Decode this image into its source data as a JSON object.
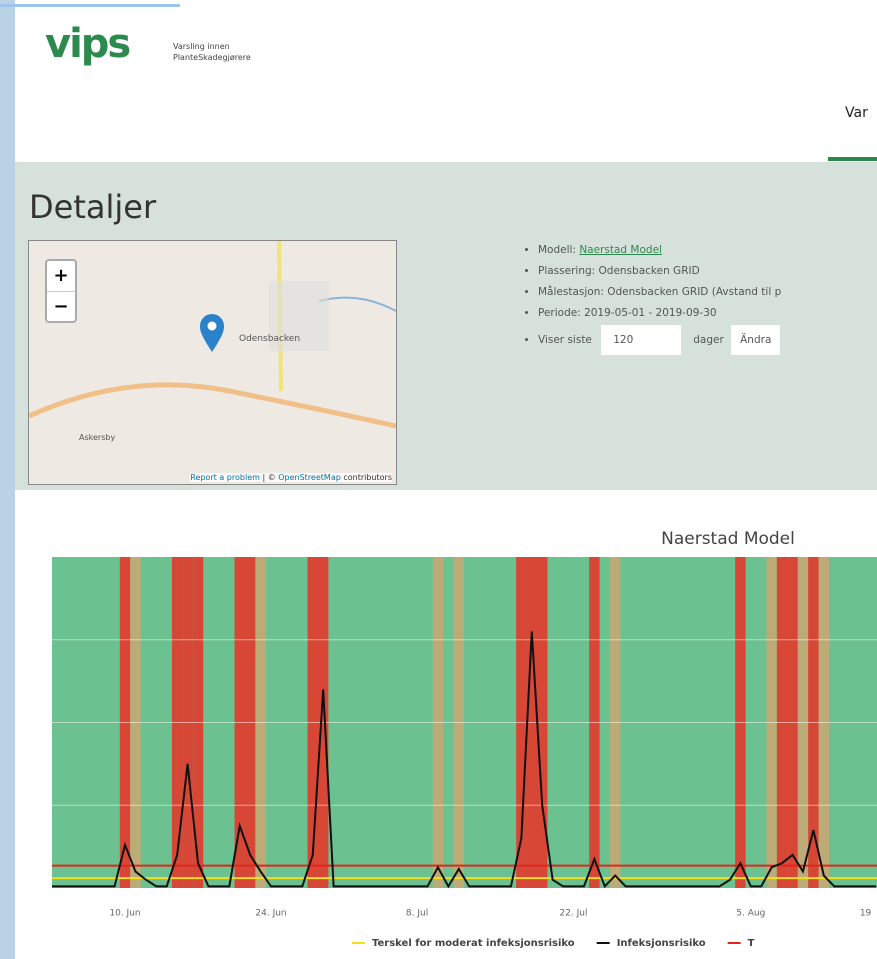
{
  "header": {
    "logo": "vips",
    "tagline_1": "Varsling innen",
    "tagline_2": "PlanteSkadegjørere",
    "nav_item": "Var"
  },
  "page_title": "Detaljer",
  "map": {
    "zoom_in": "+",
    "zoom_out": "−",
    "place": "Odensbacken",
    "village": "Askersby",
    "attribution_link": "Report a problem",
    "attribution_sep": " | © ",
    "attribution_osm": "OpenStreetMap",
    "attribution_rest": " contributors"
  },
  "info": {
    "model_label": "Modell: ",
    "model_link": "Naerstad Model",
    "location": "Plassering: Odensbacken GRID",
    "station": "Målestasjon: Odensbacken GRID (Avstand til p",
    "period": "Periode: 2019-05-01 - 2019-09-30",
    "show_label": "Viser siste",
    "show_days": "120",
    "days_unit": "dager",
    "button": "Ändra"
  },
  "chart_data": {
    "type": "line",
    "title": "Naerstad Model",
    "categories": [
      null,
      null,
      null,
      null,
      null,
      null,
      null,
      "10. Jun",
      null,
      null,
      null,
      null,
      null,
      null,
      null,
      null,
      null,
      null,
      null,
      null,
      null,
      "24. Jun",
      null,
      null,
      null,
      null,
      null,
      null,
      null,
      null,
      null,
      null,
      null,
      null,
      null,
      "8. Jul",
      null,
      null,
      null,
      null,
      null,
      null,
      null,
      null,
      null,
      null,
      null,
      null,
      null,
      null,
      "22. Jul",
      null,
      null,
      null,
      null,
      null,
      null,
      null,
      null,
      null,
      null,
      null,
      null,
      null,
      null,
      null,
      null,
      "5. Aug",
      null,
      null,
      null,
      null,
      null,
      null,
      null,
      null,
      null,
      null,
      "19",
      null
    ],
    "ylim": [
      0,
      40
    ],
    "grid": true,
    "series": [
      {
        "name": "Terskel for moderat infeksjonsrisiko",
        "color": "#f2e01c",
        "threshold": 1.2
      },
      {
        "name": "Infeksjonsrisiko",
        "color": "#111111",
        "values": [
          0.2,
          0.2,
          0.2,
          0.2,
          0.2,
          0.2,
          0.2,
          5.2,
          2,
          1,
          0.2,
          0.2,
          4,
          15,
          3,
          0.2,
          0.2,
          0.2,
          7.5,
          4,
          2,
          0.2,
          0.2,
          0.2,
          0.2,
          4,
          24,
          0.2,
          0.2,
          0.2,
          0.2,
          0.2,
          0.2,
          0.2,
          0.2,
          0.2,
          0.2,
          2.5,
          0.2,
          2.3,
          0.2,
          0.2,
          0.2,
          0.2,
          0.2,
          6,
          31,
          10,
          1,
          0.2,
          0.2,
          0.2,
          3.5,
          0.2,
          1.5,
          0.2,
          0.2,
          0.2,
          0.2,
          0.2,
          0.2,
          0.2,
          0.2,
          0.2,
          0.2,
          1,
          3,
          0.2,
          0.2,
          2.5,
          3,
          4,
          2,
          7,
          1.5,
          0.2,
          0.2,
          0.2,
          0.2,
          0.2
        ]
      },
      {
        "name": "T",
        "color": "#e2261c",
        "threshold": 2.7
      }
    ]
  }
}
